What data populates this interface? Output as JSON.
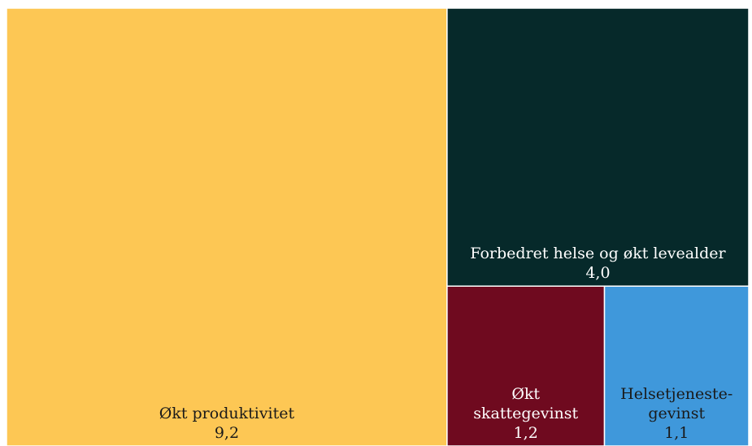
{
  "chart_data": {
    "type": "treemap",
    "title": "",
    "items": [
      {
        "label": "Økt produktivitet",
        "label_lines": [
          "Økt produktivitet"
        ],
        "value": 9.2,
        "value_label": "9,2",
        "color": "#FDC754",
        "text_color": "#1a1a1a"
      },
      {
        "label": "Forbedret helse og økt levealder",
        "label_lines": [
          "Forbedret helse og økt levealder"
        ],
        "value": 4.0,
        "value_label": "4,0",
        "color": "#06292A",
        "text_color": "#ffffff"
      },
      {
        "label": "Økt skattegevinst",
        "label_lines": [
          "Økt",
          "skattegevinst"
        ],
        "value": 1.2,
        "value_label": "1,2",
        "color": "#6F0A1F",
        "text_color": "#ffffff"
      },
      {
        "label": "Helsetjeneste-gevinst",
        "label_lines": [
          "Helsetjeneste-",
          "gevinst"
        ],
        "value": 1.1,
        "value_label": "1,1",
        "color": "#3F98DB",
        "text_color": "#1a1a1a"
      }
    ]
  }
}
